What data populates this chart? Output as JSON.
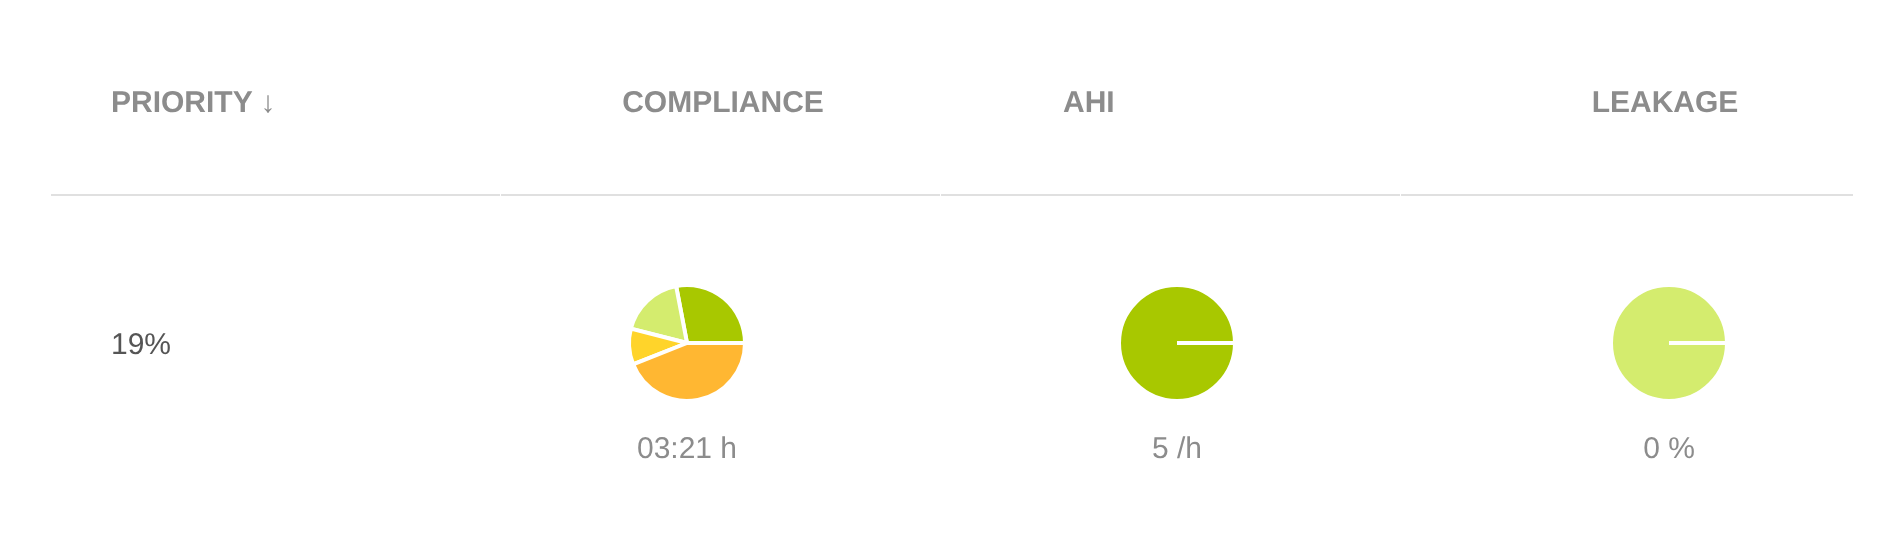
{
  "chart_data": [
    {
      "type": "other",
      "title": "PRIORITY ↓",
      "annotations": [
        "19%"
      ]
    },
    {
      "type": "pie",
      "title": "COMPLIANCE",
      "categories": [
        null,
        null,
        null,
        null
      ],
      "values": [
        28,
        18,
        10,
        44
      ],
      "colors": [
        "#a8c800",
        "#d4ec6e",
        "#ffd42a",
        "#ffb732"
      ],
      "annotations": [
        "03:21 h"
      ]
    },
    {
      "type": "pie",
      "title": "AHI",
      "categories": [
        null
      ],
      "values": [
        100
      ],
      "colors": [
        "#a8c800"
      ],
      "annotations": [
        "5 /h"
      ]
    },
    {
      "type": "pie",
      "title": "LEAKAGE",
      "categories": [
        null
      ],
      "values": [
        100
      ],
      "colors": [
        "#d4ec6e"
      ],
      "annotations": [
        "0 %"
      ]
    }
  ]
}
